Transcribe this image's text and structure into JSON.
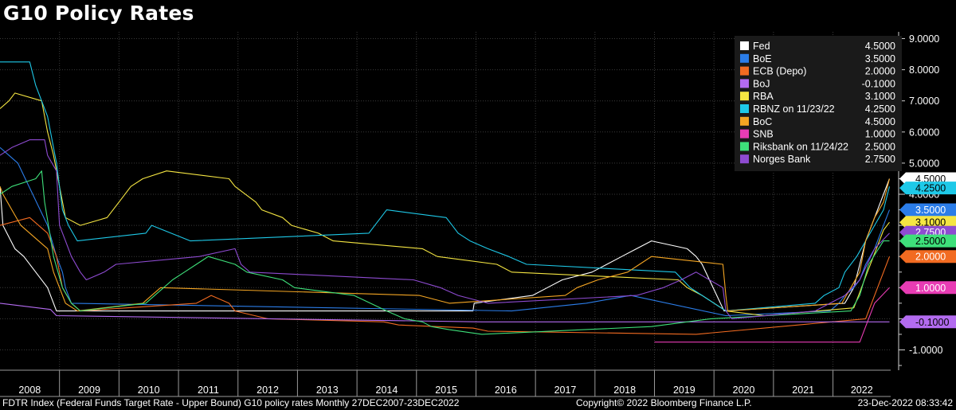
{
  "title": "G10 Policy Rates",
  "footer": {
    "source": "FDTR Index (Federal Funds Target Rate - Upper Bound) G10 policy rates  Monthly 27DEC2007-23DEC2022",
    "copyright": "Copyright© 2022 Bloomberg Finance L.P.",
    "timestamp": "23-Dec-2022 08:33:42"
  },
  "chart_data": {
    "type": "line",
    "title": "G10 Policy Rates",
    "x_categories": [
      "2008",
      "2009",
      "2010",
      "2011",
      "2012",
      "2013",
      "2014",
      "2015",
      "2016",
      "2017",
      "2018",
      "2019",
      "2020",
      "2021",
      "2022"
    ],
    "ylim": [
      -1.5,
      9.2
    ],
    "y_ticks": [
      {
        "v": 9,
        "label": "9.0000"
      },
      {
        "v": 8,
        "label": "8.0000"
      },
      {
        "v": 7,
        "label": "7.0000"
      },
      {
        "v": 6,
        "label": "6.0000"
      },
      {
        "v": 5,
        "label": "5.0000"
      },
      {
        "v": 4,
        "label": "4.0000"
      },
      {
        "v": -1,
        "label": "-1.0000"
      }
    ],
    "grid": true,
    "legend_position": "top-right",
    "series": [
      {
        "name": "Fed",
        "last": "4.5000",
        "color": "#ffffff",
        "points": [
          [
            2008.0,
            4.25
          ],
          [
            2008.05,
            3.0
          ],
          [
            2008.25,
            2.25
          ],
          [
            2008.4,
            2.0
          ],
          [
            2008.8,
            1.0
          ],
          [
            2008.95,
            0.25
          ],
          [
            2015.95,
            0.25
          ],
          [
            2015.97,
            0.5
          ],
          [
            2016.95,
            0.75
          ],
          [
            2017.2,
            1.0
          ],
          [
            2017.45,
            1.25
          ],
          [
            2017.95,
            1.5
          ],
          [
            2018.2,
            1.75
          ],
          [
            2018.45,
            2.0
          ],
          [
            2018.7,
            2.25
          ],
          [
            2018.95,
            2.5
          ],
          [
            2019.55,
            2.25
          ],
          [
            2019.7,
            2.0
          ],
          [
            2019.8,
            1.75
          ],
          [
            2020.17,
            0.25
          ],
          [
            2022.2,
            0.5
          ],
          [
            2022.35,
            1.0
          ],
          [
            2022.45,
            1.75
          ],
          [
            2022.55,
            2.5
          ],
          [
            2022.7,
            3.25
          ],
          [
            2022.85,
            4.0
          ],
          [
            2022.95,
            4.5
          ]
        ]
      },
      {
        "name": "BoE",
        "last": "3.5000",
        "color": "#2b7de9",
        "points": [
          [
            2008.0,
            5.5
          ],
          [
            2008.15,
            5.25
          ],
          [
            2008.3,
            5.0
          ],
          [
            2008.8,
            3.0
          ],
          [
            2008.95,
            2.0
          ],
          [
            2009.05,
            1.5
          ],
          [
            2009.1,
            1.0
          ],
          [
            2009.2,
            0.5
          ],
          [
            2016.6,
            0.25
          ],
          [
            2017.85,
            0.5
          ],
          [
            2018.6,
            0.75
          ],
          [
            2020.2,
            0.1
          ],
          [
            2021.95,
            0.25
          ],
          [
            2022.1,
            0.5
          ],
          [
            2022.2,
            0.75
          ],
          [
            2022.35,
            1.0
          ],
          [
            2022.45,
            1.25
          ],
          [
            2022.55,
            1.75
          ],
          [
            2022.7,
            2.25
          ],
          [
            2022.85,
            3.0
          ],
          [
            2022.95,
            3.5
          ]
        ]
      },
      {
        "name": "ECB (Depo)",
        "last": "2.0000",
        "color": "#f26b21",
        "points": [
          [
            2008.0,
            3.0
          ],
          [
            2008.5,
            3.25
          ],
          [
            2008.8,
            2.75
          ],
          [
            2008.95,
            2.0
          ],
          [
            2009.05,
            1.0
          ],
          [
            2009.2,
            0.5
          ],
          [
            2009.35,
            0.25
          ],
          [
            2011.3,
            0.5
          ],
          [
            2011.55,
            0.75
          ],
          [
            2011.85,
            0.5
          ],
          [
            2011.95,
            0.25
          ],
          [
            2012.5,
            0.0
          ],
          [
            2014.45,
            -0.1
          ],
          [
            2014.7,
            -0.2
          ],
          [
            2015.95,
            -0.3
          ],
          [
            2016.2,
            -0.4
          ],
          [
            2019.7,
            -0.5
          ],
          [
            2022.55,
            0.0
          ],
          [
            2022.7,
            0.75
          ],
          [
            2022.85,
            1.5
          ],
          [
            2022.95,
            2.0
          ]
        ]
      },
      {
        "name": "BoJ",
        "last": "-0.1000",
        "color": "#b36bf0",
        "points": [
          [
            2008.0,
            0.5
          ],
          [
            2008.85,
            0.3
          ],
          [
            2008.95,
            0.1
          ],
          [
            2016.1,
            -0.1
          ],
          [
            2022.95,
            -0.1
          ]
        ]
      },
      {
        "name": "RBA",
        "last": "3.1000",
        "color": "#f5e642",
        "points": [
          [
            2008.0,
            6.75
          ],
          [
            2008.15,
            7.0
          ],
          [
            2008.25,
            7.25
          ],
          [
            2008.7,
            7.0
          ],
          [
            2008.8,
            6.0
          ],
          [
            2008.9,
            5.25
          ],
          [
            2009.0,
            4.25
          ],
          [
            2009.1,
            3.25
          ],
          [
            2009.35,
            3.0
          ],
          [
            2009.8,
            3.25
          ],
          [
            2009.9,
            3.5
          ],
          [
            2010.0,
            3.75
          ],
          [
            2010.2,
            4.25
          ],
          [
            2010.4,
            4.5
          ],
          [
            2010.8,
            4.75
          ],
          [
            2011.85,
            4.5
          ],
          [
            2011.95,
            4.25
          ],
          [
            2012.3,
            3.75
          ],
          [
            2012.4,
            3.5
          ],
          [
            2012.75,
            3.25
          ],
          [
            2012.9,
            3.0
          ],
          [
            2013.35,
            2.75
          ],
          [
            2013.6,
            2.5
          ],
          [
            2015.1,
            2.25
          ],
          [
            2015.35,
            2.0
          ],
          [
            2016.35,
            1.75
          ],
          [
            2016.6,
            1.5
          ],
          [
            2019.4,
            1.25
          ],
          [
            2019.55,
            1.0
          ],
          [
            2019.8,
            0.75
          ],
          [
            2020.2,
            0.25
          ],
          [
            2020.85,
            0.1
          ],
          [
            2022.35,
            0.35
          ],
          [
            2022.45,
            0.85
          ],
          [
            2022.55,
            1.35
          ],
          [
            2022.65,
            1.85
          ],
          [
            2022.75,
            2.35
          ],
          [
            2022.85,
            2.85
          ],
          [
            2022.95,
            3.1
          ]
        ]
      },
      {
        "name": "RBNZ on 11/23/22",
        "last": "4.2500",
        "color": "#1ec9e8",
        "points": [
          [
            2008.0,
            8.25
          ],
          [
            2008.5,
            8.25
          ],
          [
            2008.6,
            7.5
          ],
          [
            2008.8,
            6.5
          ],
          [
            2008.95,
            5.0
          ],
          [
            2009.05,
            3.5
          ],
          [
            2009.15,
            3.0
          ],
          [
            2009.3,
            2.5
          ],
          [
            2010.45,
            2.75
          ],
          [
            2010.55,
            3.0
          ],
          [
            2011.2,
            2.5
          ],
          [
            2014.2,
            2.75
          ],
          [
            2014.3,
            3.0
          ],
          [
            2014.4,
            3.25
          ],
          [
            2014.5,
            3.5
          ],
          [
            2015.5,
            3.25
          ],
          [
            2015.6,
            3.0
          ],
          [
            2015.7,
            2.75
          ],
          [
            2015.9,
            2.5
          ],
          [
            2016.2,
            2.25
          ],
          [
            2016.55,
            2.0
          ],
          [
            2016.85,
            1.75
          ],
          [
            2019.35,
            1.5
          ],
          [
            2019.6,
            1.0
          ],
          [
            2020.2,
            0.25
          ],
          [
            2021.7,
            0.5
          ],
          [
            2021.85,
            0.75
          ],
          [
            2022.1,
            1.0
          ],
          [
            2022.2,
            1.5
          ],
          [
            2022.4,
            2.0
          ],
          [
            2022.55,
            2.5
          ],
          [
            2022.7,
            3.0
          ],
          [
            2022.85,
            3.5
          ],
          [
            2022.95,
            4.25
          ]
        ]
      },
      {
        "name": "BoC",
        "last": "4.5000",
        "color": "#f5a623",
        "points": [
          [
            2008.0,
            4.25
          ],
          [
            2008.05,
            4.0
          ],
          [
            2008.2,
            3.5
          ],
          [
            2008.35,
            3.0
          ],
          [
            2008.8,
            2.25
          ],
          [
            2008.9,
            1.5
          ],
          [
            2009.0,
            1.0
          ],
          [
            2009.1,
            0.5
          ],
          [
            2009.3,
            0.25
          ],
          [
            2010.4,
            0.5
          ],
          [
            2010.55,
            0.75
          ],
          [
            2010.7,
            1.0
          ],
          [
            2015.05,
            0.75
          ],
          [
            2015.55,
            0.5
          ],
          [
            2017.5,
            0.75
          ],
          [
            2017.7,
            1.0
          ],
          [
            2018.05,
            1.25
          ],
          [
            2018.55,
            1.5
          ],
          [
            2018.75,
            1.75
          ],
          [
            2018.95,
            2.0
          ],
          [
            2020.15,
            1.75
          ],
          [
            2020.2,
            0.75
          ],
          [
            2020.23,
            0.25
          ],
          [
            2022.15,
            0.5
          ],
          [
            2022.3,
            1.0
          ],
          [
            2022.45,
            1.5
          ],
          [
            2022.55,
            2.5
          ],
          [
            2022.7,
            3.25
          ],
          [
            2022.85,
            3.75
          ],
          [
            2022.95,
            4.5
          ]
        ]
      },
      {
        "name": "SNB",
        "last": "1.0000",
        "color": "#e83cb4",
        "points": [
          [
            2019.0,
            -0.75
          ],
          [
            2022.45,
            -0.75
          ],
          [
            2022.55,
            -0.25
          ],
          [
            2022.7,
            0.5
          ],
          [
            2022.95,
            1.0
          ]
        ]
      },
      {
        "name": "Riksbank on 11/24/22",
        "last": "2.5000",
        "color": "#3ee07a",
        "points": [
          [
            2008.0,
            4.0
          ],
          [
            2008.2,
            4.25
          ],
          [
            2008.6,
            4.5
          ],
          [
            2008.7,
            4.75
          ],
          [
            2008.75,
            3.75
          ],
          [
            2008.9,
            2.0
          ],
          [
            2009.05,
            1.0
          ],
          [
            2009.2,
            0.5
          ],
          [
            2009.35,
            0.25
          ],
          [
            2010.45,
            0.5
          ],
          [
            2010.6,
            0.75
          ],
          [
            2010.75,
            1.0
          ],
          [
            2010.9,
            1.25
          ],
          [
            2011.1,
            1.5
          ],
          [
            2011.3,
            1.75
          ],
          [
            2011.5,
            2.0
          ],
          [
            2011.95,
            1.75
          ],
          [
            2012.15,
            1.5
          ],
          [
            2012.75,
            1.25
          ],
          [
            2012.95,
            1.0
          ],
          [
            2013.95,
            0.75
          ],
          [
            2014.5,
            0.25
          ],
          [
            2014.8,
            0.0
          ],
          [
            2015.1,
            -0.1
          ],
          [
            2015.25,
            -0.25
          ],
          [
            2015.55,
            -0.35
          ],
          [
            2016.1,
            -0.5
          ],
          [
            2018.95,
            -0.25
          ],
          [
            2019.95,
            0.0
          ],
          [
            2022.3,
            0.25
          ],
          [
            2022.45,
            0.75
          ],
          [
            2022.6,
            1.75
          ],
          [
            2022.85,
            2.5
          ],
          [
            2022.95,
            2.5
          ]
        ]
      },
      {
        "name": "Norges Bank",
        "last": "2.7500",
        "color": "#8e4bd1",
        "points": [
          [
            2008.0,
            5.25
          ],
          [
            2008.2,
            5.5
          ],
          [
            2008.5,
            5.75
          ],
          [
            2008.75,
            5.75
          ],
          [
            2008.8,
            5.25
          ],
          [
            2008.95,
            4.75
          ],
          [
            2009.0,
            3.0
          ],
          [
            2009.1,
            2.5
          ],
          [
            2009.2,
            2.0
          ],
          [
            2009.35,
            1.5
          ],
          [
            2009.45,
            1.25
          ],
          [
            2009.75,
            1.5
          ],
          [
            2009.95,
            1.75
          ],
          [
            2011.35,
            2.0
          ],
          [
            2011.95,
            2.25
          ],
          [
            2012.05,
            1.75
          ],
          [
            2012.2,
            1.5
          ],
          [
            2014.95,
            1.25
          ],
          [
            2015.4,
            1.0
          ],
          [
            2015.7,
            0.75
          ],
          [
            2016.2,
            0.5
          ],
          [
            2018.7,
            0.75
          ],
          [
            2019.15,
            1.0
          ],
          [
            2019.45,
            1.25
          ],
          [
            2019.7,
            1.5
          ],
          [
            2020.15,
            1.0
          ],
          [
            2020.2,
            0.25
          ],
          [
            2020.3,
            0.0
          ],
          [
            2021.7,
            0.25
          ],
          [
            2021.95,
            0.5
          ],
          [
            2022.2,
            0.75
          ],
          [
            2022.45,
            1.25
          ],
          [
            2022.7,
            2.25
          ],
          [
            2022.95,
            2.75
          ]
        ]
      }
    ],
    "right_tags": [
      {
        "label": "4.5000",
        "value": 4.5,
        "bg": "#ffffff",
        "fg": "#000000"
      },
      {
        "label": "4.2500",
        "value": 4.2,
        "bg": "#1ec9e8",
        "fg": "#000000"
      },
      {
        "label": "3.5000",
        "value": 3.5,
        "bg": "#2b7de9",
        "fg": "#ffffff"
      },
      {
        "label": "3.1000",
        "value": 3.1,
        "bg": "#f5e642",
        "fg": "#000000"
      },
      {
        "label": "2.7500",
        "value": 2.78,
        "bg": "#8e4bd1",
        "fg": "#ffffff"
      },
      {
        "label": "2.5000",
        "value": 2.5,
        "bg": "#3ee07a",
        "fg": "#000000"
      },
      {
        "label": "2.0000",
        "value": 2.0,
        "bg": "#f26b21",
        "fg": "#ffffff"
      },
      {
        "label": "1.0000",
        "value": 1.0,
        "bg": "#e83cb4",
        "fg": "#ffffff"
      },
      {
        "label": "-0.1000",
        "value": -0.1,
        "bg": "#b36bf0",
        "fg": "#000000"
      }
    ]
  }
}
